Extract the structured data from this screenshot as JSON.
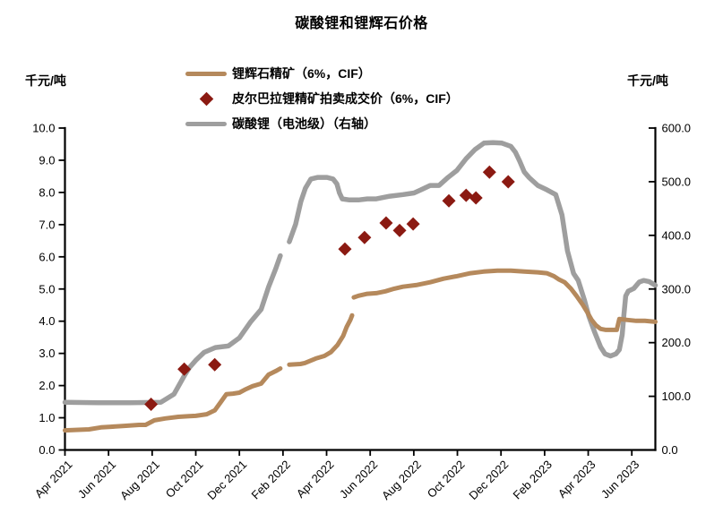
{
  "page": {
    "title": "碳酸锂和锂辉石价格"
  },
  "axis_units": {
    "left": "千元/吨",
    "right": "千元/吨"
  },
  "legend": [
    {
      "label": "锂辉石精矿（6%，CIF）",
      "marker": "line",
      "color": "#B5895C"
    },
    {
      "label": "皮尔巴拉锂精矿拍卖成交价（6%，CIF）",
      "marker": "diamond",
      "color": "#8B1A12"
    },
    {
      "label": "碳酸锂（电池级）（右轴）",
      "marker": "line",
      "color": "#9E9E9E"
    }
  ],
  "chart_data": {
    "type": "line",
    "title": "碳酸锂和锂辉石价格",
    "grid": false,
    "legend_position": "top-inside",
    "x_axis": {
      "note_month_zero": "Apr 2021",
      "months_per_tick": 2,
      "x_range_months": [
        0,
        27.08
      ],
      "tick_labels": [
        "Apr 2021",
        "Jun 2021",
        "Aug 2021",
        "Oct 2021",
        "Dec 2021",
        "Feb 2022",
        "Apr 2022",
        "Jun 2022",
        "Aug 2022",
        "Oct 2022",
        "Dec 2022",
        "Feb 2023",
        "Apr 2023",
        "Jun 2023"
      ]
    },
    "left_axis": {
      "label": "千元/吨",
      "range": [
        0,
        10
      ],
      "tick_step": 1.0,
      "tick_labels": [
        "0.0",
        "1.0",
        "2.0",
        "3.0",
        "4.0",
        "5.0",
        "6.0",
        "7.0",
        "8.0",
        "9.0",
        "10.0"
      ]
    },
    "right_axis": {
      "label": "千元/吨",
      "range": [
        0,
        600
      ],
      "tick_step": 100.0,
      "tick_labels": [
        "0.0",
        "100.0",
        "200.0",
        "300.0",
        "400.0",
        "500.0",
        "600.0"
      ]
    },
    "series": [
      {
        "name": "碳酸锂（电池级）（右轴）",
        "type": "line",
        "axis": "right",
        "color": "#9E9E9E",
        "line_width": 5.5,
        "segments": [
          [
            [
              0,
              89
            ],
            [
              1.5,
              88
            ],
            [
              3.0,
              88
            ],
            [
              4.4,
              89
            ],
            [
              5.0,
              104
            ],
            [
              5.5,
              140
            ],
            [
              5.72,
              154
            ],
            [
              6.0,
              167
            ],
            [
              6.38,
              182
            ],
            [
              6.9,
              191
            ],
            [
              7.5,
              194
            ],
            [
              8.0,
              209
            ],
            [
              8.5,
              238
            ],
            [
              9.0,
              262
            ],
            [
              9.34,
              304
            ],
            [
              9.67,
              338
            ],
            [
              9.88,
              362
            ]
          ],
          [
            [
              10.29,
              388
            ],
            [
              10.58,
              421
            ],
            [
              10.82,
              463
            ],
            [
              11.03,
              488
            ],
            [
              11.28,
              505
            ],
            [
              11.6,
              508
            ],
            [
              12.02,
              508
            ],
            [
              12.3,
              505
            ],
            [
              12.47,
              496
            ],
            [
              12.59,
              479
            ],
            [
              12.72,
              468
            ],
            [
              13.05,
              466
            ],
            [
              13.46,
              466
            ],
            [
              13.87,
              468
            ],
            [
              14.28,
              468
            ],
            [
              14.9,
              473
            ],
            [
              15.51,
              476
            ],
            [
              16.01,
              479
            ],
            [
              16.34,
              485
            ],
            [
              16.75,
              493
            ],
            [
              17.16,
              493
            ],
            [
              17.57,
              508
            ],
            [
              17.98,
              521
            ],
            [
              18.4,
              543
            ],
            [
              18.81,
              560
            ],
            [
              19.22,
              572
            ],
            [
              19.63,
              573
            ],
            [
              20.04,
              572
            ],
            [
              20.45,
              566
            ],
            [
              20.66,
              555
            ],
            [
              20.86,
              538
            ],
            [
              21.07,
              518
            ],
            [
              21.28,
              508
            ],
            [
              21.69,
              493
            ],
            [
              22.1,
              485
            ],
            [
              22.51,
              476
            ],
            [
              22.8,
              438
            ],
            [
              23.05,
              371
            ],
            [
              23.33,
              329
            ],
            [
              23.54,
              316
            ],
            [
              23.83,
              279
            ],
            [
              24.03,
              249
            ],
            [
              24.28,
              221
            ],
            [
              24.57,
              192
            ],
            [
              24.77,
              179
            ],
            [
              25.02,
              175
            ],
            [
              25.27,
              179
            ],
            [
              25.43,
              187
            ],
            [
              25.56,
              215
            ],
            [
              25.64,
              254
            ],
            [
              25.72,
              287
            ],
            [
              25.84,
              296
            ],
            [
              26.09,
              301
            ],
            [
              26.34,
              313
            ],
            [
              26.54,
              316
            ],
            [
              26.79,
              314
            ],
            [
              27.08,
              307
            ]
          ]
        ]
      },
      {
        "name": "锂辉石精矿（6%，CIF）",
        "type": "line",
        "axis": "left",
        "color": "#B5895C",
        "line_width": 5,
        "segments": [
          [
            [
              0,
              0.61
            ],
            [
              1.1,
              0.64
            ],
            [
              1.65,
              0.7
            ],
            [
              2.1,
              0.72
            ],
            [
              2.8,
              0.75
            ],
            [
              3.4,
              0.78
            ],
            [
              3.7,
              0.78
            ],
            [
              4.1,
              0.92
            ],
            [
              4.6,
              0.98
            ],
            [
              5.2,
              1.03
            ],
            [
              5.7,
              1.05
            ],
            [
              6.0,
              1.06
            ],
            [
              6.5,
              1.11
            ],
            [
              6.87,
              1.23
            ],
            [
              7.16,
              1.5
            ],
            [
              7.4,
              1.73
            ],
            [
              7.7,
              1.75
            ],
            [
              8.0,
              1.78
            ],
            [
              8.3,
              1.89
            ],
            [
              8.6,
              1.98
            ],
            [
              9.0,
              2.06
            ],
            [
              9.34,
              2.34
            ],
            [
              9.67,
              2.45
            ],
            [
              9.88,
              2.53
            ]
          ],
          [
            [
              10.29,
              2.65
            ],
            [
              10.8,
              2.67
            ],
            [
              11.0,
              2.7
            ],
            [
              11.5,
              2.84
            ],
            [
              11.9,
              2.92
            ],
            [
              12.2,
              3.04
            ],
            [
              12.5,
              3.26
            ],
            [
              12.76,
              3.54
            ],
            [
              12.92,
              3.82
            ],
            [
              13.09,
              4.04
            ],
            [
              13.17,
              4.18
            ]
          ],
          [
            [
              13.25,
              4.74
            ],
            [
              13.46,
              4.79
            ],
            [
              13.87,
              4.85
            ],
            [
              14.28,
              4.87
            ],
            [
              14.7,
              4.93
            ],
            [
              15.1,
              5.01
            ],
            [
              15.5,
              5.07
            ],
            [
              16.1,
              5.12
            ],
            [
              16.75,
              5.21
            ],
            [
              17.37,
              5.32
            ],
            [
              17.98,
              5.4
            ],
            [
              18.6,
              5.49
            ],
            [
              19.2,
              5.54
            ],
            [
              19.84,
              5.57
            ],
            [
              20.45,
              5.57
            ],
            [
              21.07,
              5.54
            ],
            [
              21.69,
              5.52
            ],
            [
              22.1,
              5.49
            ],
            [
              22.43,
              5.4
            ],
            [
              22.67,
              5.29
            ],
            [
              22.92,
              5.21
            ],
            [
              23.21,
              5.01
            ],
            [
              23.46,
              4.79
            ],
            [
              23.75,
              4.51
            ],
            [
              23.95,
              4.29
            ],
            [
              24.16,
              4.04
            ],
            [
              24.36,
              3.87
            ],
            [
              24.57,
              3.76
            ],
            [
              24.81,
              3.73
            ],
            [
              25.31,
              3.73
            ],
            [
              25.43,
              4.07
            ],
            [
              25.8,
              4.04
            ],
            [
              26.2,
              4.01
            ],
            [
              26.6,
              4.01
            ],
            [
              27.08,
              3.98
            ]
          ]
        ]
      },
      {
        "name": "皮尔巴拉锂精矿拍卖成交价（6%，CIF）",
        "type": "scatter",
        "axis": "left",
        "marker": "diamond",
        "marker_size": 15,
        "color": "#8B1A12",
        "points": [
          [
            3.95,
            1.42
          ],
          [
            5.47,
            2.51
          ],
          [
            6.87,
            2.65
          ],
          [
            12.84,
            6.24
          ],
          [
            13.74,
            6.6
          ],
          [
            14.73,
            7.05
          ],
          [
            15.35,
            6.82
          ],
          [
            15.97,
            7.02
          ],
          [
            17.61,
            7.74
          ],
          [
            18.4,
            7.91
          ],
          [
            18.85,
            7.83
          ],
          [
            19.47,
            8.63
          ],
          [
            20.33,
            8.33
          ]
        ]
      }
    ]
  }
}
